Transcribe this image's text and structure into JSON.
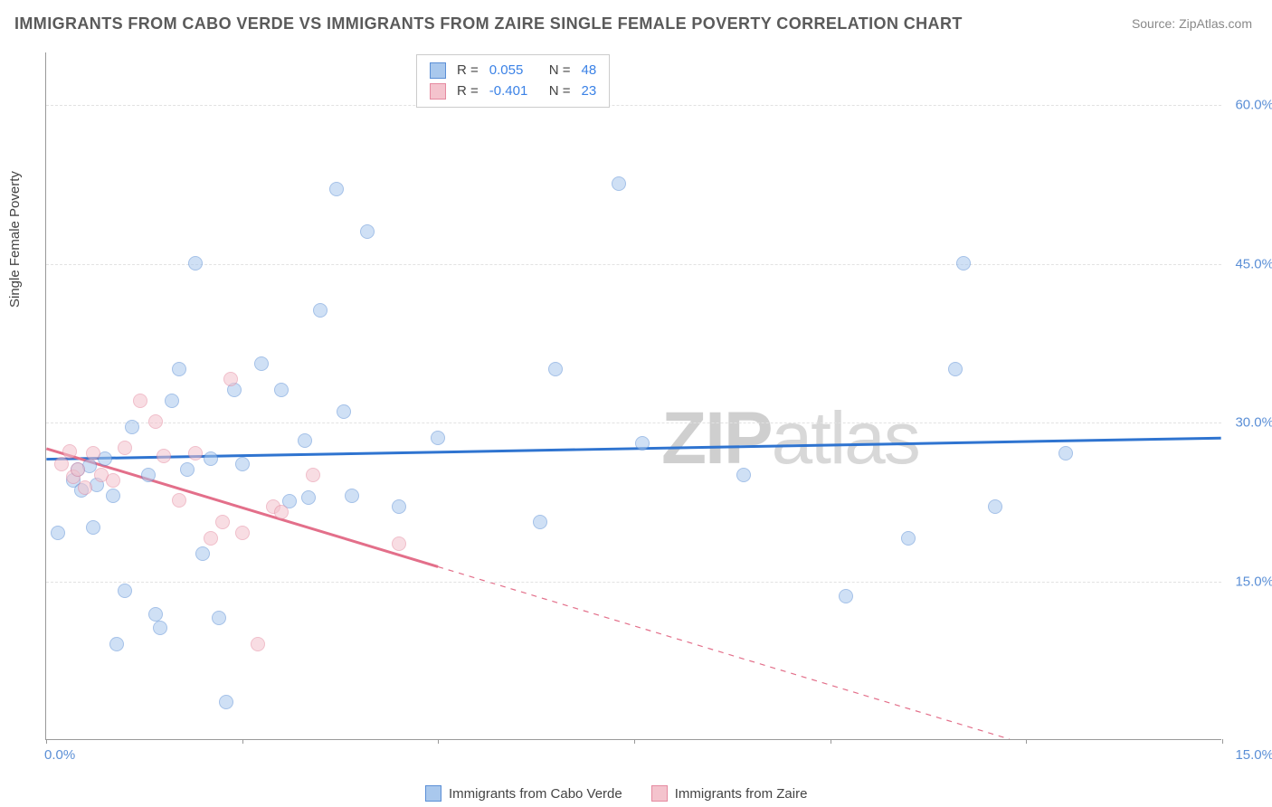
{
  "title": "IMMIGRANTS FROM CABO VERDE VS IMMIGRANTS FROM ZAIRE SINGLE FEMALE POVERTY CORRELATION CHART",
  "source": "Source: ZipAtlas.com",
  "watermark_a": "ZIP",
  "watermark_b": "atlas",
  "y_axis_label": "Single Female Poverty",
  "chart": {
    "type": "scatter",
    "background_color": "#ffffff",
    "grid_color": "#e2e2e2",
    "axis_color": "#999999",
    "label_color": "#5b8fd6",
    "title_color": "#5a5a5a",
    "title_fontsize": 18,
    "label_fontsize": 15,
    "tick_fontsize": 15,
    "x_range": [
      0,
      15
    ],
    "y_range": [
      0,
      65
    ],
    "y_gridlines": [
      15,
      30,
      45,
      60
    ],
    "y_tick_labels": [
      "15.0%",
      "30.0%",
      "45.0%",
      "60.0%"
    ],
    "x_ticks": [
      0,
      2.5,
      5,
      7.5,
      10,
      12.5,
      15
    ],
    "x_tick_labels": {
      "0": "0.0%",
      "15": "15.0%"
    },
    "marker_radius": 8,
    "marker_opacity": 0.55,
    "series": [
      {
        "key": "cabo_verde",
        "label": "Immigrants from Cabo Verde",
        "fill_color": "#a9c8ed",
        "stroke_color": "#5b8fd6",
        "line_color": "#2f74d0",
        "line_width": 3,
        "R": "0.055",
        "N": "48",
        "regression": {
          "x0": 0,
          "y0": 26.5,
          "x1": 15,
          "y1": 28.5,
          "dash": false
        },
        "points": [
          [
            0.15,
            19.5
          ],
          [
            0.35,
            24.5
          ],
          [
            0.4,
            25.5
          ],
          [
            0.45,
            23.5
          ],
          [
            0.55,
            25.8
          ],
          [
            0.6,
            20.0
          ],
          [
            0.65,
            24.0
          ],
          [
            0.75,
            26.5
          ],
          [
            0.85,
            23.0
          ],
          [
            0.9,
            9.0
          ],
          [
            1.0,
            14.0
          ],
          [
            1.1,
            29.5
          ],
          [
            1.3,
            25.0
          ],
          [
            1.4,
            11.8
          ],
          [
            1.45,
            10.5
          ],
          [
            1.6,
            32.0
          ],
          [
            1.7,
            35.0
          ],
          [
            1.8,
            25.5
          ],
          [
            1.9,
            45.0
          ],
          [
            2.0,
            17.5
          ],
          [
            2.1,
            26.5
          ],
          [
            2.2,
            11.5
          ],
          [
            2.3,
            3.5
          ],
          [
            2.4,
            33.0
          ],
          [
            2.5,
            26.0
          ],
          [
            2.75,
            35.5
          ],
          [
            3.0,
            33.0
          ],
          [
            3.1,
            22.5
          ],
          [
            3.3,
            28.2
          ],
          [
            3.35,
            22.8
          ],
          [
            3.5,
            40.5
          ],
          [
            3.7,
            52.0
          ],
          [
            3.8,
            31.0
          ],
          [
            3.9,
            23.0
          ],
          [
            4.1,
            48.0
          ],
          [
            4.5,
            22.0
          ],
          [
            5.0,
            28.5
          ],
          [
            6.3,
            20.5
          ],
          [
            6.5,
            35.0
          ],
          [
            7.3,
            52.5
          ],
          [
            7.6,
            28.0
          ],
          [
            8.9,
            25.0
          ],
          [
            10.2,
            13.5
          ],
          [
            11.0,
            19.0
          ],
          [
            11.6,
            35.0
          ],
          [
            11.7,
            45.0
          ],
          [
            12.1,
            22.0
          ],
          [
            13.0,
            27.0
          ]
        ]
      },
      {
        "key": "zaire",
        "label": "Immigrants from Zaire",
        "fill_color": "#f4c3cd",
        "stroke_color": "#e58aa0",
        "line_color": "#e36f8a",
        "line_width": 3,
        "R": "-0.401",
        "N": "23",
        "regression": {
          "x0": 0,
          "y0": 27.5,
          "x1": 12.3,
          "y1": 0,
          "dash_after_x": 5.0
        },
        "points": [
          [
            0.2,
            26.0
          ],
          [
            0.3,
            27.2
          ],
          [
            0.35,
            24.8
          ],
          [
            0.4,
            25.5
          ],
          [
            0.5,
            23.8
          ],
          [
            0.6,
            27.0
          ],
          [
            0.7,
            25.0
          ],
          [
            0.85,
            24.5
          ],
          [
            1.0,
            27.5
          ],
          [
            1.2,
            32.0
          ],
          [
            1.4,
            30.0
          ],
          [
            1.5,
            26.8
          ],
          [
            1.7,
            22.6
          ],
          [
            1.9,
            27.0
          ],
          [
            2.1,
            19.0
          ],
          [
            2.25,
            20.5
          ],
          [
            2.35,
            34.0
          ],
          [
            2.5,
            19.5
          ],
          [
            2.7,
            9.0
          ],
          [
            2.9,
            22.0
          ],
          [
            3.0,
            21.5
          ],
          [
            3.4,
            25.0
          ],
          [
            4.5,
            18.5
          ]
        ]
      }
    ],
    "stat_legend": {
      "rows": [
        {
          "series": 0,
          "R_label": "R =",
          "N_label": "N ="
        },
        {
          "series": 1,
          "R_label": "R =",
          "N_label": "N ="
        }
      ]
    }
  }
}
